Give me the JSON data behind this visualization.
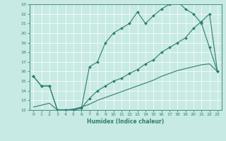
{
  "xlabel": "Humidex (Indice chaleur)",
  "xlim": [
    -0.5,
    23.5
  ],
  "ylim": [
    12,
    23
  ],
  "yticks": [
    12,
    13,
    14,
    15,
    16,
    17,
    18,
    19,
    20,
    21,
    22,
    23
  ],
  "xticks": [
    0,
    1,
    2,
    3,
    4,
    5,
    6,
    7,
    8,
    9,
    10,
    11,
    12,
    13,
    14,
    15,
    16,
    17,
    18,
    19,
    20,
    21,
    22,
    23
  ],
  "bg_color": "#c8eae4",
  "line_color": "#2e7d6e",
  "line1_x": [
    0,
    1,
    2,
    3,
    4,
    5,
    6,
    7,
    8,
    9,
    10,
    11,
    12,
    13,
    14,
    15,
    16,
    17,
    18,
    19,
    20,
    21,
    22,
    23
  ],
  "line1_y": [
    15.5,
    14.5,
    14.5,
    12.0,
    12.0,
    12.0,
    12.2,
    16.5,
    17.0,
    19.0,
    20.0,
    20.5,
    21.0,
    22.2,
    21.0,
    21.8,
    22.5,
    23.0,
    23.3,
    22.5,
    22.0,
    21.0,
    18.5,
    16.0
  ],
  "line2_x": [
    0,
    1,
    2,
    3,
    4,
    5,
    6,
    7,
    8,
    9,
    10,
    11,
    12,
    13,
    14,
    15,
    16,
    17,
    18,
    19,
    20,
    21,
    22,
    23
  ],
  "line2_y": [
    15.5,
    14.5,
    14.5,
    12.0,
    12.0,
    12.0,
    12.2,
    13.2,
    14.0,
    14.5,
    15.0,
    15.3,
    15.8,
    16.2,
    16.8,
    17.2,
    18.0,
    18.5,
    19.0,
    19.5,
    20.5,
    21.2,
    22.0,
    16.0
  ],
  "line3_x": [
    0,
    1,
    2,
    3,
    4,
    5,
    6,
    7,
    8,
    9,
    10,
    11,
    12,
    13,
    14,
    15,
    16,
    17,
    18,
    19,
    20,
    21,
    22,
    23
  ],
  "line3_y": [
    12.3,
    12.5,
    12.7,
    12.0,
    12.0,
    12.1,
    12.3,
    12.6,
    13.0,
    13.3,
    13.6,
    13.9,
    14.2,
    14.5,
    14.8,
    15.1,
    15.5,
    15.8,
    16.1,
    16.3,
    16.5,
    16.7,
    16.8,
    16.0
  ]
}
